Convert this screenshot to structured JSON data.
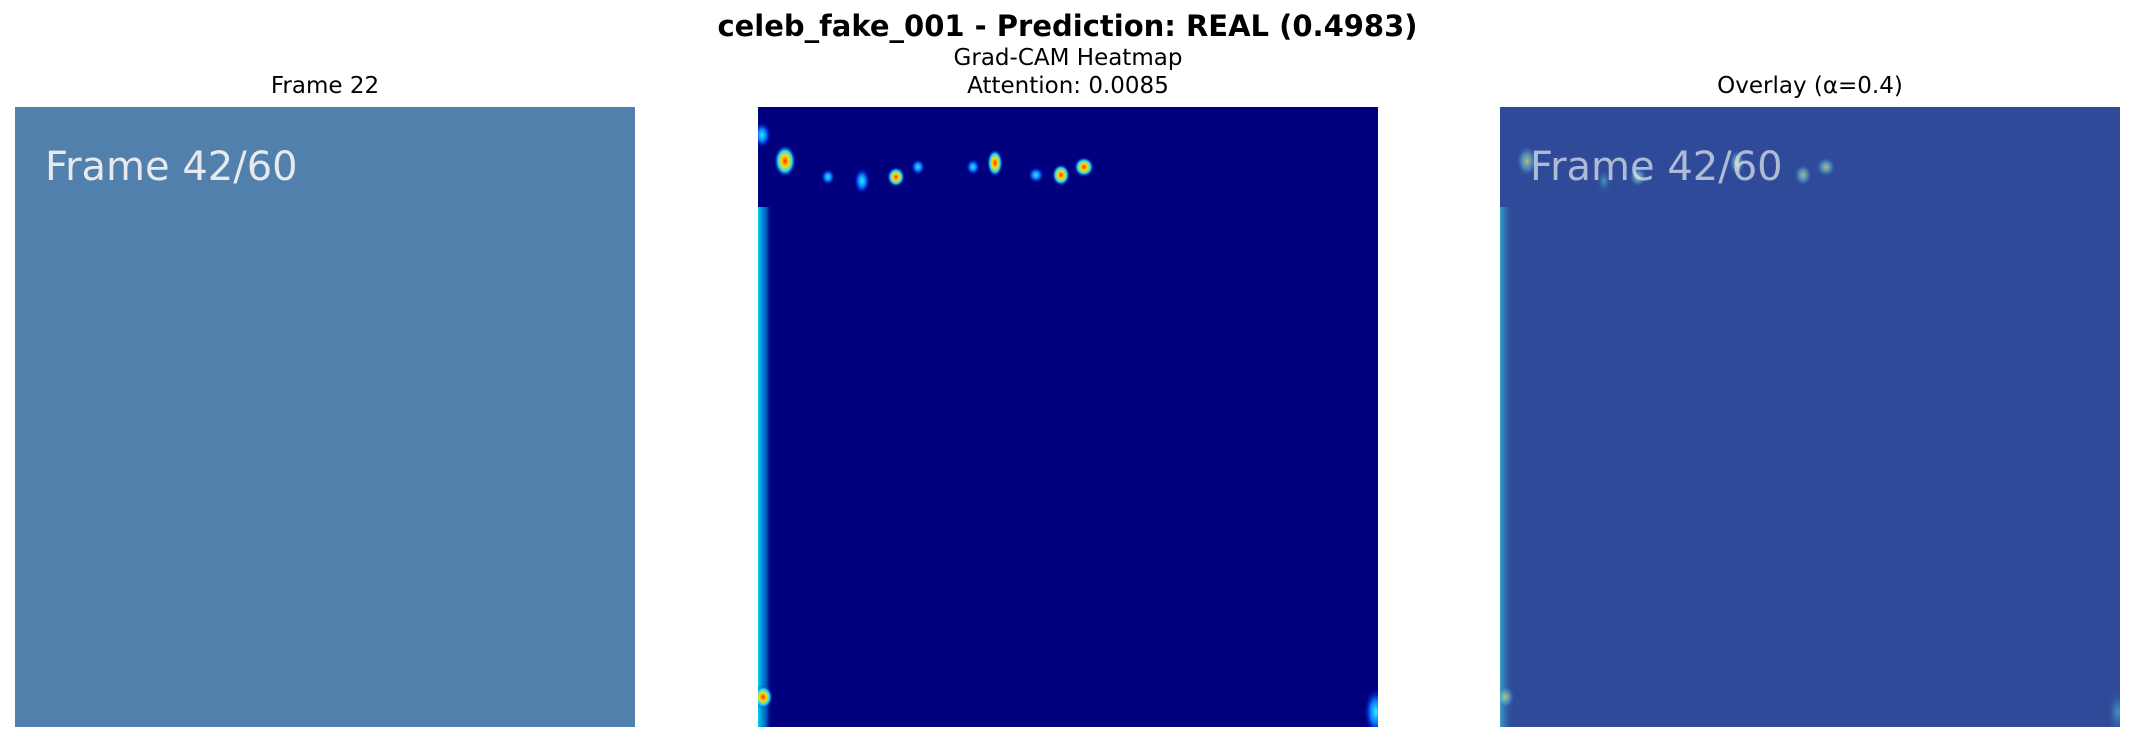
{
  "figure": {
    "suptitle": "celeb_fake_001 - Prediction: REAL (0.4983)"
  },
  "panels": [
    {
      "title_lines": [
        "Frame 22"
      ],
      "overlay_text": "Frame 42/60"
    },
    {
      "title_lines": [
        "Grad-CAM Heatmap",
        "Attention: 0.0085"
      ]
    },
    {
      "title_lines": [
        "Overlay (α=0.4)"
      ],
      "overlay_text": "Frame 42/60"
    }
  ],
  "colors": {
    "frame_background": "#5180ad",
    "heatmap_background": "#00007f",
    "overlay_background": "#2f4a98",
    "frame_text": "#e6e9ee",
    "heatmap_cool": "#00e5ff",
    "heatmap_warm": "#ffe000",
    "heatmap_hot": "#ff3000"
  }
}
